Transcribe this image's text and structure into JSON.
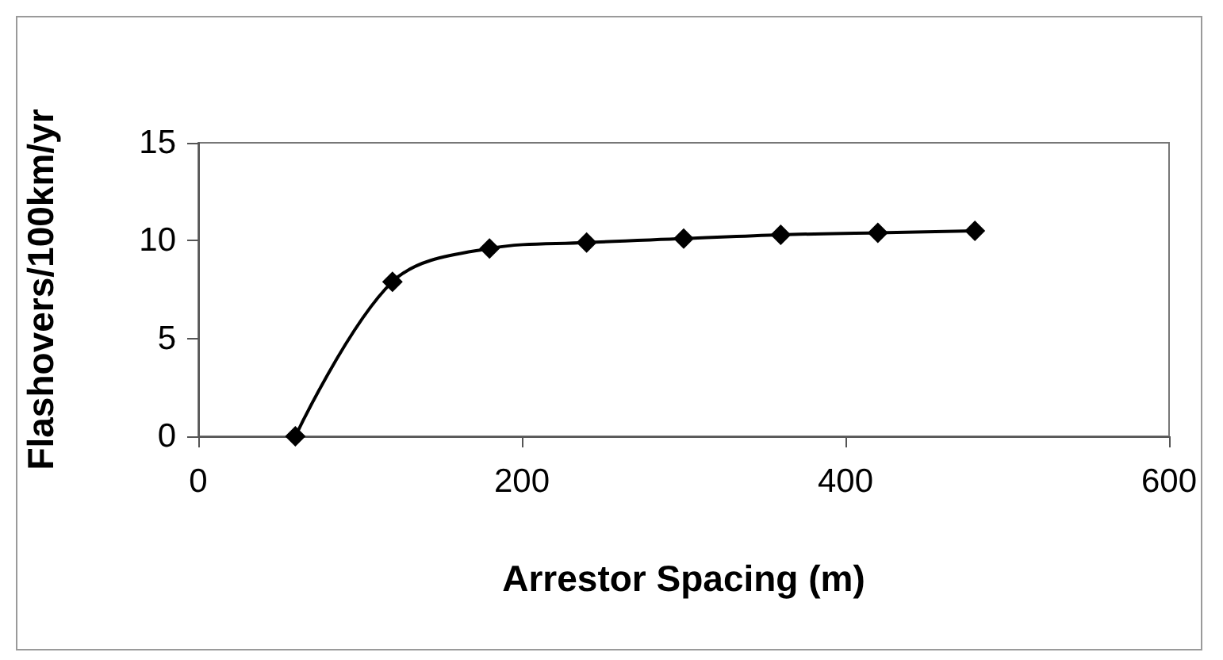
{
  "chart_data": {
    "type": "line",
    "xlabel": "Arrestor Spacing (m)",
    "ylabel": "Flashovers/100km/yr",
    "series": [
      {
        "color": "#000000",
        "x": [
          60,
          120,
          180,
          240,
          300,
          360,
          420,
          480
        ],
        "values": [
          0,
          7.9,
          9.6,
          9.9,
          10.1,
          10.3,
          10.4,
          10.5
        ]
      }
    ],
    "xlim": [
      0,
      600
    ],
    "xticks": [
      0,
      200,
      400,
      600
    ],
    "ylim": [
      0,
      15
    ],
    "yticks": [
      0,
      5,
      10,
      15
    ],
    "grid": false,
    "marker": "diamond",
    "line_style": "solid"
  }
}
